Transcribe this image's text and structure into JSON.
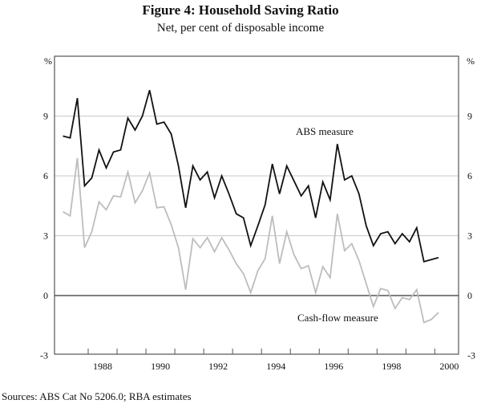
{
  "chart_data": {
    "type": "line",
    "title": "Figure 4: Household Saving Ratio",
    "subtitle": "Net, per cent of disposable income",
    "ylabel_left": "%",
    "ylabel_right": "%",
    "ylim": [
      -3,
      12
    ],
    "yticks": [
      -3,
      0,
      3,
      6,
      9
    ],
    "xlim": [
      1986.4,
      2000.8
    ],
    "xtick_labels": [
      "1988",
      "1990",
      "1992",
      "1994",
      "1996",
      "1998",
      "2000"
    ],
    "grid": true,
    "x_start": 1987.125,
    "x_step": 0.25,
    "series": [
      {
        "name": "ABS measure",
        "color": "#111111",
        "values": [
          8.0,
          7.9,
          9.9,
          5.5,
          5.9,
          7.3,
          6.4,
          7.2,
          7.3,
          8.9,
          8.3,
          9.0,
          10.3,
          8.6,
          8.7,
          8.1,
          6.5,
          4.4,
          6.5,
          5.8,
          6.2,
          4.9,
          6.0,
          5.1,
          4.1,
          3.9,
          2.5,
          3.5,
          4.55,
          6.6,
          5.1,
          6.5,
          5.75,
          5.0,
          5.5,
          3.9,
          5.7,
          4.8,
          7.6,
          5.8,
          6.0,
          5.1,
          3.5,
          2.5,
          3.1,
          3.2,
          2.6,
          3.1,
          2.7,
          3.4,
          1.7,
          1.8,
          1.9
        ]
      },
      {
        "name": "Cash-flow measure",
        "color": "#bdbdbd",
        "values": [
          4.2,
          4.0,
          6.9,
          2.4,
          3.2,
          4.7,
          4.3,
          5.0,
          4.95,
          6.2,
          4.65,
          5.25,
          6.15,
          4.4,
          4.45,
          3.55,
          2.4,
          0.3,
          2.85,
          2.4,
          2.9,
          2.2,
          2.9,
          2.3,
          1.6,
          1.1,
          0.15,
          1.25,
          1.85,
          4.0,
          1.6,
          3.2,
          2.05,
          1.35,
          1.5,
          0.15,
          1.45,
          0.9,
          4.1,
          2.25,
          2.6,
          1.75,
          0.6,
          -0.55,
          0.35,
          0.25,
          -0.65,
          -0.1,
          -0.2,
          0.3,
          -1.35,
          -1.2,
          -0.85
        ]
      }
    ],
    "source": "Sources: ABS Cat No 5206.0; RBA estimates"
  }
}
